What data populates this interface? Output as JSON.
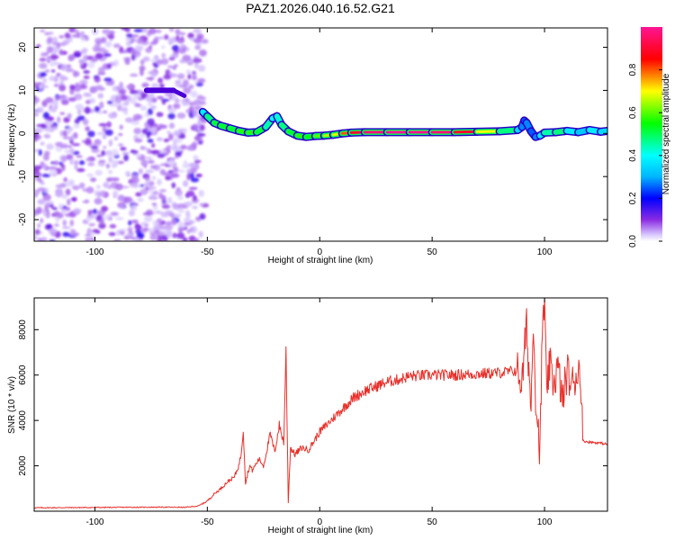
{
  "title": "PAZ1.2026.040.16.52.G21",
  "chart_data": [
    {
      "type": "heatmap",
      "name": "spectrogram",
      "xlabel": "Height of straight line (km)",
      "ylabel": "Frequency (Hz)",
      "xlim": [
        -127,
        128
      ],
      "ylim": [
        -25,
        24.5
      ],
      "xticks": [
        -100,
        -50,
        0,
        50,
        100
      ],
      "yticks": [
        -20,
        -10,
        0,
        10,
        20
      ],
      "colorbar": {
        "label": "Normalized spectral amplitude",
        "range": [
          0,
          1
        ],
        "ticks": [
          "0.0",
          "0.2",
          "0.4",
          "0.6",
          "0.8"
        ],
        "tick_values": [
          0,
          0.2,
          0.4,
          0.6,
          0.8
        ]
      },
      "noise_region_x": [
        -127,
        -51
      ],
      "ridge": {
        "x": [
          -52,
          -50,
          -47,
          -44,
          -40,
          -36,
          -32,
          -28,
          -24,
          -21,
          -19,
          -17,
          -14,
          -10,
          -6,
          -2,
          2,
          6,
          10,
          14,
          20,
          30,
          40,
          50,
          60,
          70,
          80,
          88,
          90,
          91,
          92,
          94,
          96,
          98,
          100,
          105,
          110,
          115,
          120,
          125,
          128
        ],
        "y": [
          5,
          4,
          2.5,
          1.8,
          1.2,
          0.6,
          0.2,
          0.3,
          1.5,
          3.5,
          4,
          2,
          0.5,
          -0.5,
          -0.8,
          -0.6,
          -0.5,
          -0.3,
          0,
          0.2,
          0.3,
          0.3,
          0.3,
          0.3,
          0.3,
          0.4,
          0.5,
          0.8,
          1.5,
          3,
          2.5,
          0.5,
          -0.8,
          -0.5,
          0.2,
          0.3,
          0.6,
          0.3,
          0.8,
          0.4,
          0.6
        ],
        "amplitude": [
          0.3,
          0.45,
          0.5,
          0.55,
          0.5,
          0.55,
          0.6,
          0.55,
          0.5,
          0.4,
          0.4,
          0.45,
          0.5,
          0.55,
          0.6,
          0.5,
          0.7,
          0.6,
          0.75,
          0.85,
          0.95,
          1,
          1,
          1,
          0.95,
          0.85,
          0.55,
          0.4,
          0.3,
          0.25,
          0.25,
          0.3,
          0.2,
          0.35,
          0.4,
          0.5,
          0.45,
          0.3,
          0.35,
          0.4,
          0.3
        ]
      },
      "spur": {
        "x": [
          -77,
          -65
        ],
        "y": 10
      }
    },
    {
      "type": "line",
      "name": "snr",
      "xlabel": "Height of straight line (km)",
      "ylabel": "SNR (10 * v/v)",
      "xlim": [
        -127,
        128
      ],
      "ylim": [
        0,
        9400
      ],
      "xticks": [
        -100,
        -50,
        0,
        50,
        100
      ],
      "yticks": [
        2000,
        4000,
        6000,
        8000
      ],
      "color": "#e8302a",
      "series": [
        {
          "name": "SNR",
          "x": [
            -127,
            -110,
            -90,
            -70,
            -60,
            -54,
            -50,
            -47,
            -44,
            -41,
            -38,
            -36,
            -35,
            -34,
            -33,
            -32,
            -31,
            -30,
            -27,
            -25,
            -22,
            -20,
            -18,
            -16,
            -15,
            -14,
            -13,
            -11,
            -8,
            -5,
            0,
            5,
            10,
            15,
            20,
            25,
            30,
            35,
            40,
            50,
            60,
            70,
            80,
            88,
            90,
            92,
            94,
            95,
            96,
            97,
            98,
            99,
            100,
            101,
            102,
            104,
            106,
            108,
            110,
            112,
            114,
            116,
            117,
            120,
            125,
            128
          ],
          "y": [
            150,
            160,
            170,
            180,
            170,
            230,
            450,
            750,
            1000,
            1300,
            1500,
            2000,
            2500,
            3600,
            1200,
            1700,
            2000,
            1800,
            2300,
            2000,
            3400,
            2600,
            3800,
            3000,
            7100,
            400,
            2800,
            2500,
            2800,
            2700,
            3500,
            4000,
            4500,
            5000,
            5300,
            5500,
            5700,
            5800,
            5950,
            6000,
            6000,
            6050,
            6100,
            6200,
            5600,
            8200,
            4500,
            8700,
            5200,
            3800,
            2700,
            7800,
            9400,
            4600,
            6500,
            5700,
            6300,
            4800,
            6200,
            5500,
            6000,
            6300,
            3100,
            3050,
            3000,
            2950
          ]
        }
      ]
    }
  ]
}
